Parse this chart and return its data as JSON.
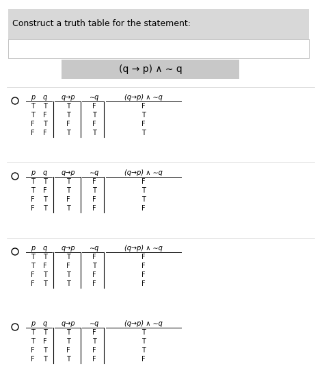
{
  "title": "Construct a truth table for the statement:",
  "formula": "(q → p) ∧ ∼ q",
  "white_bg": "#ffffff",
  "title_bg": "#d8d8d8",
  "formula_bg": "#c8c8c8",
  "tables": [
    {
      "rows": [
        [
          "T",
          "T",
          "T",
          "F",
          "F"
        ],
        [
          "T",
          "F",
          "T",
          "T",
          "T"
        ],
        [
          "F",
          "T",
          "F",
          "F",
          "F"
        ],
        [
          "F",
          "F",
          "T",
          "T",
          "T"
        ]
      ]
    },
    {
      "rows": [
        [
          "T",
          "T",
          "T",
          "F",
          "F"
        ],
        [
          "T",
          "F",
          "T",
          "T",
          "T"
        ],
        [
          "F",
          "T",
          "F",
          "F",
          "T"
        ],
        [
          "F",
          "T",
          "T",
          "F",
          "F"
        ]
      ]
    },
    {
      "rows": [
        [
          "T",
          "T",
          "T",
          "F",
          "F"
        ],
        [
          "T",
          "F",
          "F",
          "T",
          "F"
        ],
        [
          "F",
          "T",
          "T",
          "F",
          "F"
        ],
        [
          "F",
          "T",
          "T",
          "F",
          "F"
        ]
      ]
    },
    {
      "rows": [
        [
          "T",
          "T",
          "T",
          "F",
          "T"
        ],
        [
          "T",
          "F",
          "T",
          "T",
          "T"
        ],
        [
          "F",
          "T",
          "F",
          "F",
          "T"
        ],
        [
          "F",
          "T",
          "T",
          "F",
          "F"
        ]
      ]
    }
  ]
}
